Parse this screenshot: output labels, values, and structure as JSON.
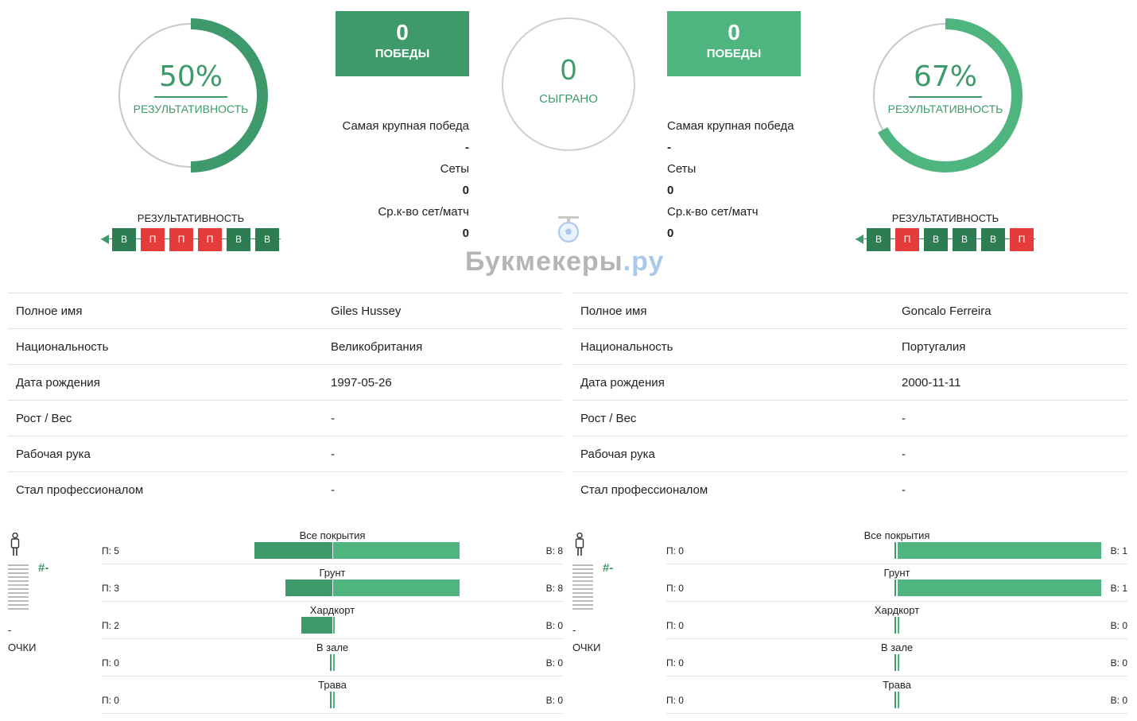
{
  "left_player": {
    "efficiency_pct": "50%",
    "efficiency_value": 0.5,
    "efficiency_label": "РЕЗУЛЬТАТИВНОСТЬ",
    "wins": "0",
    "wins_label": "ПОБЕДЫ",
    "stats": [
      {
        "label": "Самая крупная победа",
        "value": "-"
      },
      {
        "label": "Сеты",
        "value": "0"
      },
      {
        "label": "Ср.к-во сет/матч",
        "value": "0"
      }
    ],
    "form_title": "РЕЗУЛЬТАТИВНОСТЬ",
    "form": [
      "В",
      "П",
      "П",
      "П",
      "В",
      "В"
    ],
    "info": [
      {
        "key": "Полное имя",
        "value": "Giles Hussey"
      },
      {
        "key": "Национальность",
        "value": "Великобритания"
      },
      {
        "key": "Дата рождения",
        "value": "1997-05-26"
      },
      {
        "key": "Рост / Вес",
        "value": "-"
      },
      {
        "key": "Рабочая рука",
        "value": "-"
      },
      {
        "key": "Стал профессионалом",
        "value": "-"
      }
    ],
    "rank": {
      "hash": "#-",
      "dash": "-",
      "points_label": "ОЧКИ"
    },
    "surfaces": [
      {
        "name": "Все покрытия",
        "losses_label": "П: 5",
        "wins_label": "В: 8",
        "losses": 5,
        "wins": 8
      },
      {
        "name": "Грунт",
        "losses_label": "П: 3",
        "wins_label": "В: 8",
        "losses": 3,
        "wins": 8
      },
      {
        "name": "Хардкорт",
        "losses_label": "П: 2",
        "wins_label": "В: 0",
        "losses": 2,
        "wins": 0
      },
      {
        "name": "В зале",
        "losses_label": "П: 0",
        "wins_label": "В: 0",
        "losses": 0,
        "wins": 0
      },
      {
        "name": "Трава",
        "losses_label": "П: 0",
        "wins_label": "В: 0",
        "losses": 0,
        "wins": 0
      }
    ]
  },
  "right_player": {
    "efficiency_pct": "67%",
    "efficiency_value": 0.67,
    "efficiency_label": "РЕЗУЛЬТАТИВНОСТЬ",
    "wins": "0",
    "wins_label": "ПОБЕДЫ",
    "stats": [
      {
        "label": "Самая крупная победа",
        "value": "-"
      },
      {
        "label": "Сеты",
        "value": "0"
      },
      {
        "label": "Ср.к-во сет/матч",
        "value": "0"
      }
    ],
    "form_title": "РЕЗУЛЬТАТИВНОСТЬ",
    "form": [
      "В",
      "П",
      "В",
      "В",
      "В",
      "П"
    ],
    "info": [
      {
        "key": "Полное имя",
        "value": "Goncalo Ferreira"
      },
      {
        "key": "Национальность",
        "value": "Португалия"
      },
      {
        "key": "Дата рождения",
        "value": "2000-11-11"
      },
      {
        "key": "Рост / Вес",
        "value": "-"
      },
      {
        "key": "Рабочая рука",
        "value": "-"
      },
      {
        "key": "Стал профессионалом",
        "value": "-"
      }
    ],
    "rank": {
      "hash": "#-",
      "dash": "-",
      "points_label": "ОЧКИ"
    },
    "surfaces": [
      {
        "name": "Все покрытия",
        "losses_label": "П: 0",
        "wins_label": "В: 1",
        "losses": 0,
        "wins": 1
      },
      {
        "name": "Грунт",
        "losses_label": "П: 0",
        "wins_label": "В: 1",
        "losses": 0,
        "wins": 1
      },
      {
        "name": "Хардкорт",
        "losses_label": "П: 0",
        "wins_label": "В: 0",
        "losses": 0,
        "wins": 0
      },
      {
        "name": "В зале",
        "losses_label": "П: 0",
        "wins_label": "В: 0",
        "losses": 0,
        "wins": 0
      },
      {
        "name": "Трава",
        "losses_label": "П: 0",
        "wins_label": "В: 0",
        "losses": 0,
        "wins": 0
      }
    ]
  },
  "played": {
    "value": "0",
    "label": "СЫГРАНО"
  },
  "watermark": {
    "main": "Букмекеры",
    "suffix": ".ру"
  },
  "colors": {
    "dark_green": "#3f9a6b",
    "light_green": "#4fb57f",
    "win_chip": "#2e7d52",
    "loss_chip": "#e53b3b"
  },
  "icons": [
    "arrow-left-icon",
    "soccer-ball-icon",
    "person-icon"
  ]
}
